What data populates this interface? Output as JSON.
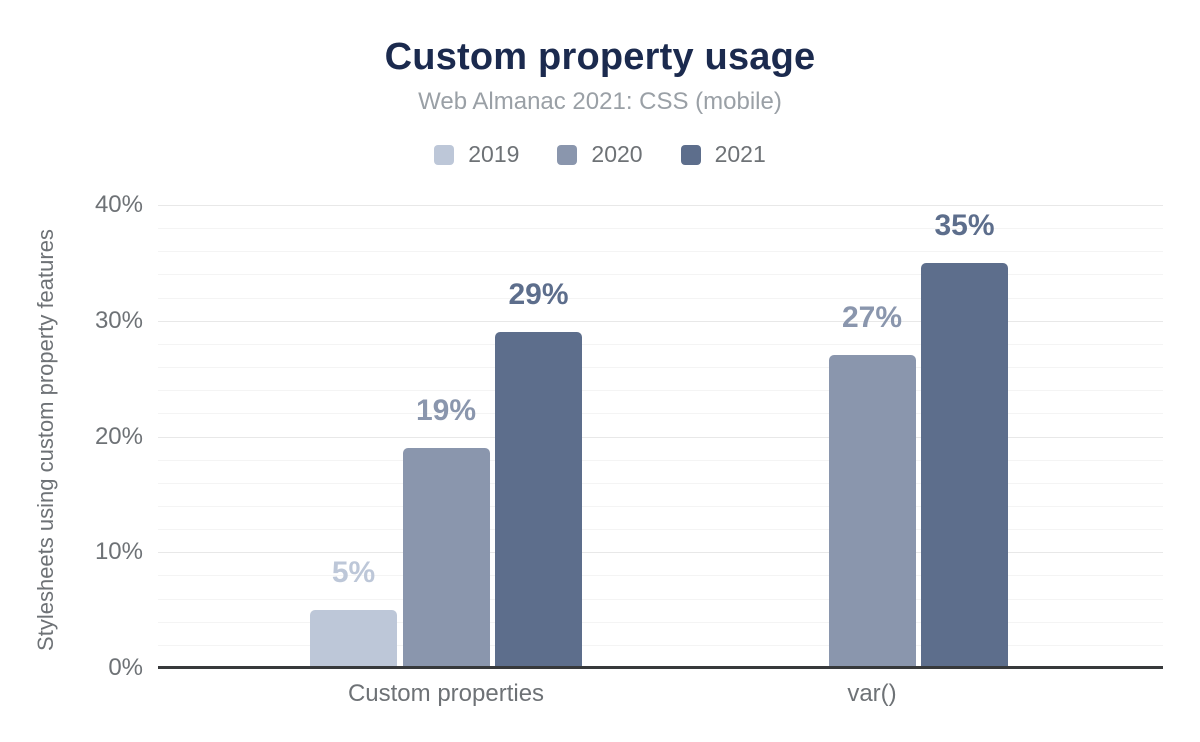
{
  "header": {
    "title": "Custom property usage",
    "subtitle": "Web Almanac 2021: CSS (mobile)"
  },
  "chart_data": {
    "type": "bar",
    "categories": [
      "Custom properties",
      "var()"
    ],
    "series": [
      {
        "name": "2019",
        "color": "#bdc7d8",
        "values": [
          5,
          null
        ]
      },
      {
        "name": "2020",
        "color": "#8a96ad",
        "values": [
          19,
          27
        ]
      },
      {
        "name": "2021",
        "color": "#5d6e8c",
        "values": [
          29,
          35
        ]
      }
    ],
    "title": "Custom property usage",
    "subtitle": "Web Almanac 2021: CSS (mobile)",
    "xlabel": "",
    "ylabel": "Stylesheets using custom property features",
    "ylim": [
      0,
      40
    ],
    "yticks": [
      {
        "value": 0,
        "label": "0%"
      },
      {
        "value": 10,
        "label": "10%"
      },
      {
        "value": 20,
        "label": "20%"
      },
      {
        "value": 30,
        "label": "30%"
      },
      {
        "value": 40,
        "label": "40%"
      }
    ],
    "grid": "on",
    "grid_minor_step_pct": 2,
    "legend_position": "top",
    "value_label_suffix": "%"
  },
  "colors": {
    "title_text": "#1b2a4e",
    "subtitle_text": "#9aa0a6",
    "axis_text": "#6e7276",
    "axis_line": "#37393b",
    "grid_minor": "#f4f4f4",
    "grid_major": "#e8e8e8",
    "background": "#ffffff"
  }
}
